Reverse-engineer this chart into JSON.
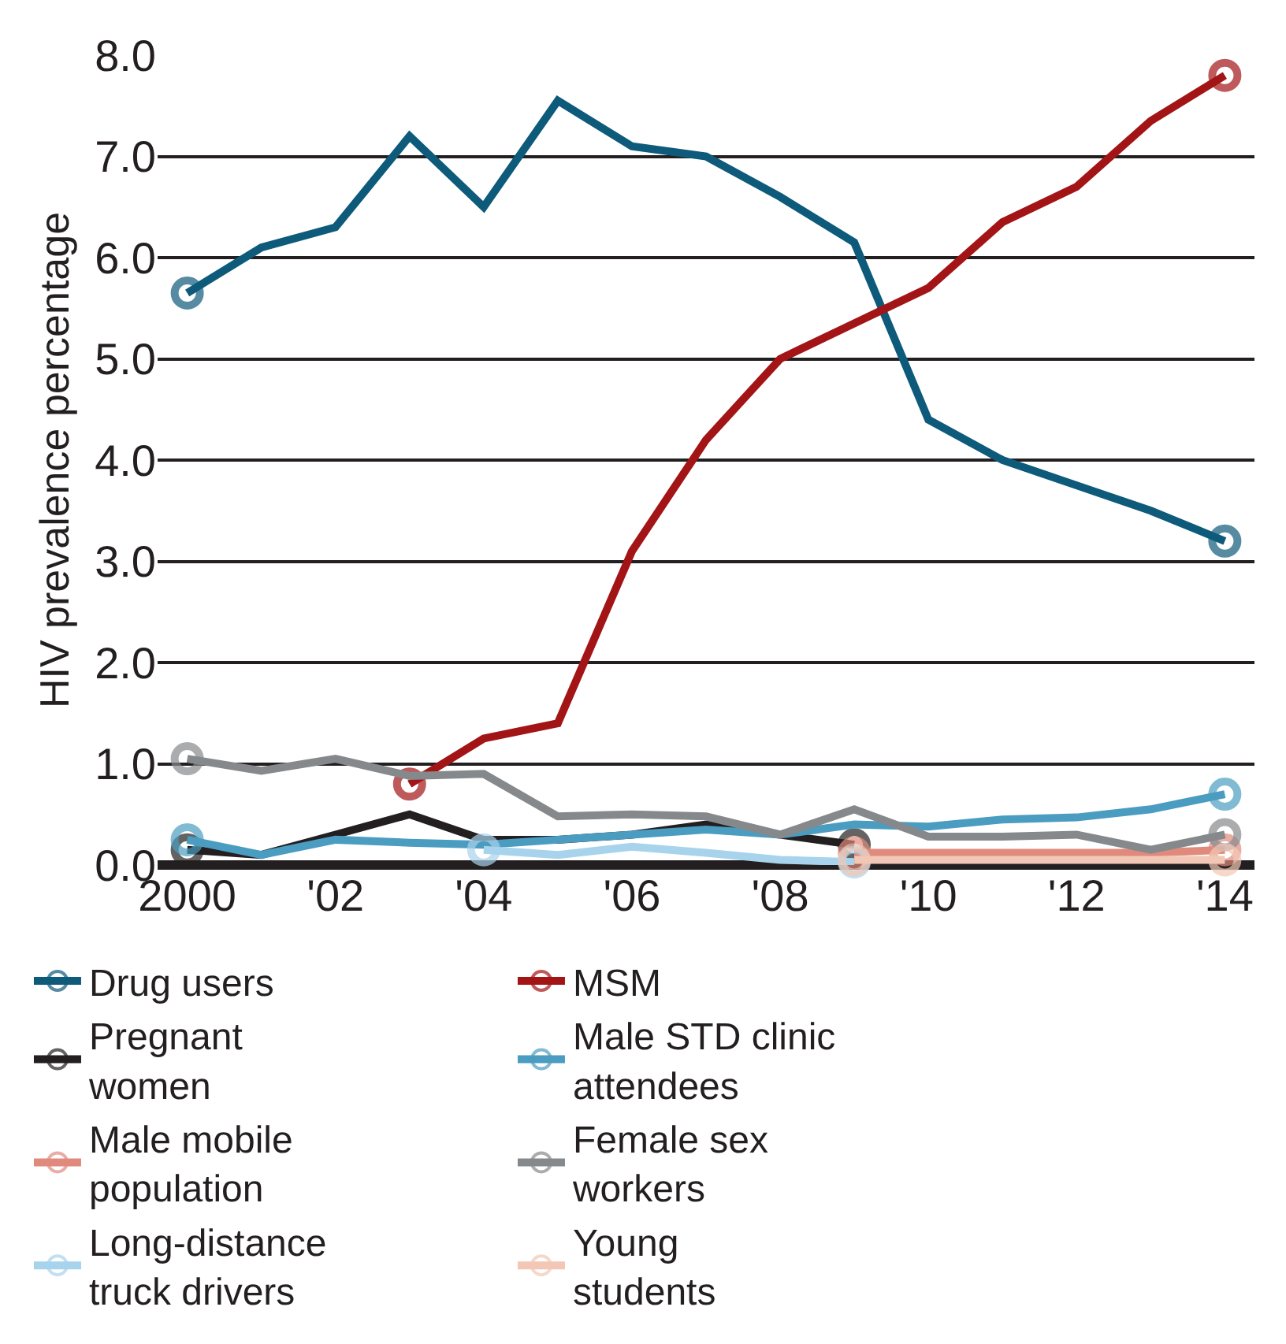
{
  "chart_data": {
    "type": "line",
    "ylabel": "HIV prevalence percentage",
    "x": [
      2000,
      2001,
      2002,
      2003,
      2004,
      2005,
      2006,
      2007,
      2008,
      2009,
      2010,
      2011,
      2012,
      2013,
      2014
    ],
    "series": [
      {
        "name": "Drug users",
        "color": "#0e5a7a",
        "values": [
          5.65,
          6.1,
          6.3,
          7.2,
          6.5,
          7.55,
          7.1,
          7.0,
          6.6,
          6.15,
          4.4,
          4.0,
          3.75,
          3.5,
          3.2
        ]
      },
      {
        "name": "MSM",
        "color": "#a31416",
        "values": [
          null,
          null,
          null,
          0.8,
          1.25,
          1.4,
          3.1,
          4.2,
          5.0,
          5.35,
          5.7,
          6.35,
          6.7,
          7.35,
          7.8
        ]
      },
      {
        "name": "Pregnant women",
        "color": "#231f20",
        "values": [
          0.15,
          0.1,
          0.3,
          0.5,
          0.25,
          0.25,
          0.3,
          0.4,
          0.3,
          0.2,
          null,
          null,
          null,
          null,
          null
        ]
      },
      {
        "name": "Male STD clinic attendees",
        "color": "#4a9cc0",
        "values": [
          0.25,
          0.1,
          0.25,
          0.22,
          0.2,
          0.25,
          0.3,
          0.35,
          0.3,
          0.4,
          0.38,
          0.45,
          0.47,
          0.55,
          0.7
        ]
      },
      {
        "name": "Male mobile population",
        "color": "#e08a7d",
        "values": [
          null,
          null,
          null,
          null,
          null,
          null,
          null,
          null,
          null,
          0.12,
          0.12,
          0.12,
          0.12,
          0.12,
          0.15
        ]
      },
      {
        "name": "Female sex workers",
        "color": "#86898b",
        "values": [
          1.05,
          0.93,
          1.05,
          0.88,
          0.9,
          0.48,
          0.5,
          0.48,
          0.3,
          0.55,
          0.28,
          0.28,
          0.3,
          0.15,
          0.3
        ]
      },
      {
        "name": "Long-distance truck drivers",
        "color": "#a8d3ec",
        "values": [
          null,
          null,
          null,
          null,
          0.15,
          0.1,
          0.18,
          0.12,
          0.05,
          0.03,
          null,
          null,
          null,
          null,
          null
        ]
      },
      {
        "name": "Young students",
        "color": "#f2c7b5",
        "values": [
          null,
          null,
          null,
          null,
          null,
          null,
          null,
          null,
          null,
          0.05,
          0.05,
          0.05,
          0.05,
          0.05,
          0.05
        ]
      }
    ],
    "xlim": [
      1999.6,
      2014.4
    ],
    "xticks": [
      2000,
      {
        "value": 2002,
        "label": "'02"
      },
      {
        "value": 2004,
        "label": "'04"
      },
      {
        "value": 2006,
        "label": "'06"
      },
      {
        "value": 2008,
        "label": "'08"
      },
      {
        "value": 2010,
        "label": "'10"
      },
      {
        "value": 2012,
        "label": "'12"
      },
      {
        "value": 2014,
        "label": "'14"
      }
    ],
    "ylim": [
      0,
      8
    ],
    "yticks": [
      {
        "value": 0,
        "label": "0.0"
      },
      {
        "value": 1,
        "label": "1.0"
      },
      {
        "value": 2,
        "label": "2.0"
      },
      {
        "value": 3,
        "label": "3.0"
      },
      {
        "value": 4,
        "label": "4.0"
      },
      {
        "value": 5,
        "label": "5.0"
      },
      {
        "value": 6,
        "label": "6.0"
      },
      {
        "value": 7,
        "label": "7.0"
      },
      {
        "value": 8,
        "label": "8.0"
      }
    ],
    "grid": "y",
    "legend": "bottom",
    "line_style": "solid"
  }
}
